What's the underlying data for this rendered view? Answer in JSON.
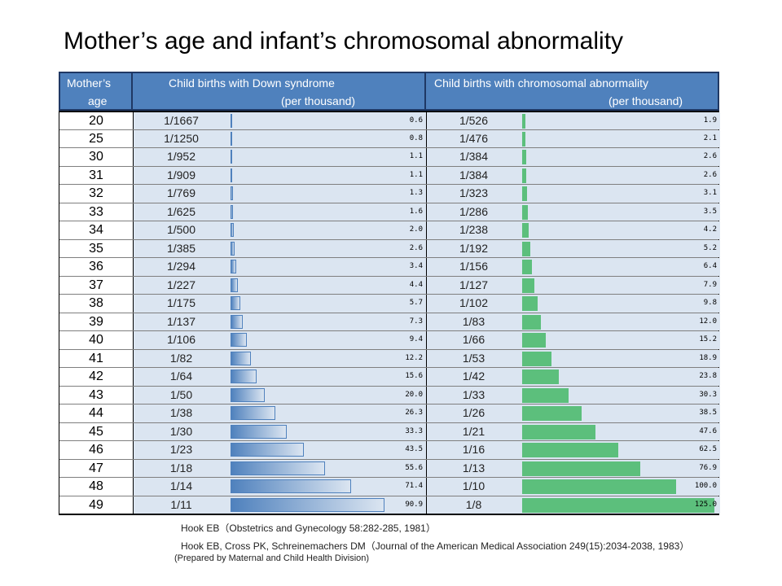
{
  "title": "Mother’s age and infant’s chromosomal abnormality",
  "headers": {
    "age_l1": "Mother’s",
    "age_l2": "age",
    "down_l1": "Child births with Down syndrome",
    "down_l2": "(per thousand)",
    "chrom_l1": "Child births with chromosomal abnormality",
    "chrom_l2": "(per thousand)"
  },
  "chart_data": {
    "type": "table",
    "title": "Mother’s age and infant’s chromosomal abnormality",
    "columns": [
      "Mother’s age",
      "Child births with Down syndrome (per thousand)",
      "Child births with chromosomal abnormality (per thousand)"
    ],
    "colors": {
      "down_bar": "#4f81bd",
      "chrom_bar": "#5cbf7c",
      "header": "#4f81bd",
      "cell_bg": "#dbe5f1"
    },
    "down_max": 90.9,
    "chrom_max": 125.0,
    "rows": [
      {
        "age": "20",
        "down_ratio": "1/1667",
        "down_value": "0.6",
        "chrom_ratio": "1/526",
        "chrom_value": "1.9"
      },
      {
        "age": "25",
        "down_ratio": "1/1250",
        "down_value": "0.8",
        "chrom_ratio": "1/476",
        "chrom_value": "2.1"
      },
      {
        "age": "30",
        "down_ratio": "1/952",
        "down_value": "1.1",
        "chrom_ratio": "1/384",
        "chrom_value": "2.6"
      },
      {
        "age": "31",
        "down_ratio": "1/909",
        "down_value": "1.1",
        "chrom_ratio": "1/384",
        "chrom_value": "2.6"
      },
      {
        "age": "32",
        "down_ratio": "1/769",
        "down_value": "1.3",
        "chrom_ratio": "1/323",
        "chrom_value": "3.1"
      },
      {
        "age": "33",
        "down_ratio": "1/625",
        "down_value": "1.6",
        "chrom_ratio": "1/286",
        "chrom_value": "3.5"
      },
      {
        "age": "34",
        "down_ratio": "1/500",
        "down_value": "2.0",
        "chrom_ratio": "1/238",
        "chrom_value": "4.2"
      },
      {
        "age": "35",
        "down_ratio": "1/385",
        "down_value": "2.6",
        "chrom_ratio": "1/192",
        "chrom_value": "5.2"
      },
      {
        "age": "36",
        "down_ratio": "1/294",
        "down_value": "3.4",
        "chrom_ratio": "1/156",
        "chrom_value": "6.4"
      },
      {
        "age": "37",
        "down_ratio": "1/227",
        "down_value": "4.4",
        "chrom_ratio": "1/127",
        "chrom_value": "7.9"
      },
      {
        "age": "38",
        "down_ratio": "1/175",
        "down_value": "5.7",
        "chrom_ratio": "1/102",
        "chrom_value": "9.8"
      },
      {
        "age": "39",
        "down_ratio": "1/137",
        "down_value": "7.3",
        "chrom_ratio": "1/83",
        "chrom_value": "12.0"
      },
      {
        "age": "40",
        "down_ratio": "1/106",
        "down_value": "9.4",
        "chrom_ratio": "1/66",
        "chrom_value": "15.2"
      },
      {
        "age": "41",
        "down_ratio": "1/82",
        "down_value": "12.2",
        "chrom_ratio": "1/53",
        "chrom_value": "18.9"
      },
      {
        "age": "42",
        "down_ratio": "1/64",
        "down_value": "15.6",
        "chrom_ratio": "1/42",
        "chrom_value": "23.8"
      },
      {
        "age": "43",
        "down_ratio": "1/50",
        "down_value": "20.0",
        "chrom_ratio": "1/33",
        "chrom_value": "30.3"
      },
      {
        "age": "44",
        "down_ratio": "1/38",
        "down_value": "26.3",
        "chrom_ratio": "1/26",
        "chrom_value": "38.5"
      },
      {
        "age": "45",
        "down_ratio": "1/30",
        "down_value": "33.3",
        "chrom_ratio": "1/21",
        "chrom_value": "47.6"
      },
      {
        "age": "46",
        "down_ratio": "1/23",
        "down_value": "43.5",
        "chrom_ratio": "1/16",
        "chrom_value": "62.5"
      },
      {
        "age": "47",
        "down_ratio": "1/18",
        "down_value": "55.6",
        "chrom_ratio": "1/13",
        "chrom_value": "76.9"
      },
      {
        "age": "48",
        "down_ratio": "1/14",
        "down_value": "71.4",
        "chrom_ratio": "1/10",
        "chrom_value": "100.0"
      },
      {
        "age": "49",
        "down_ratio": "1/11",
        "down_value": "90.9",
        "chrom_ratio": "1/8",
        "chrom_value": "125.0"
      }
    ]
  },
  "sources": {
    "line1": "Hook EB（Obstetrics and Gynecology 58:282-285, 1981）",
    "line2": "Hook EB, Cross PK, Schreinemachers DM（Journal of the American Medical Association 249(15):2034-2038, 1983）",
    "line3": "(Prepared by Maternal and Child Health Division)"
  }
}
